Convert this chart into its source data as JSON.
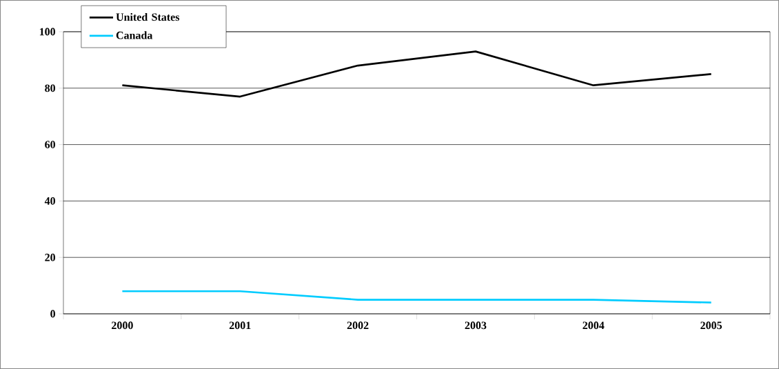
{
  "chart_data": {
    "type": "line",
    "categories": [
      "2000",
      "2001",
      "2002",
      "2003",
      "2004",
      "2005"
    ],
    "series": [
      {
        "name": "United States",
        "color": "#000000",
        "values": [
          81,
          77,
          88,
          93,
          81,
          85
        ]
      },
      {
        "name": "Canada",
        "color": "#00ccff",
        "values": [
          8,
          8,
          5,
          5,
          5,
          4
        ]
      }
    ],
    "ylim": [
      0,
      100
    ],
    "yticks": [
      0,
      20,
      40,
      60,
      80,
      100
    ],
    "grid": "y",
    "legend": "top left",
    "marker": "none",
    "line_style": "solid"
  }
}
